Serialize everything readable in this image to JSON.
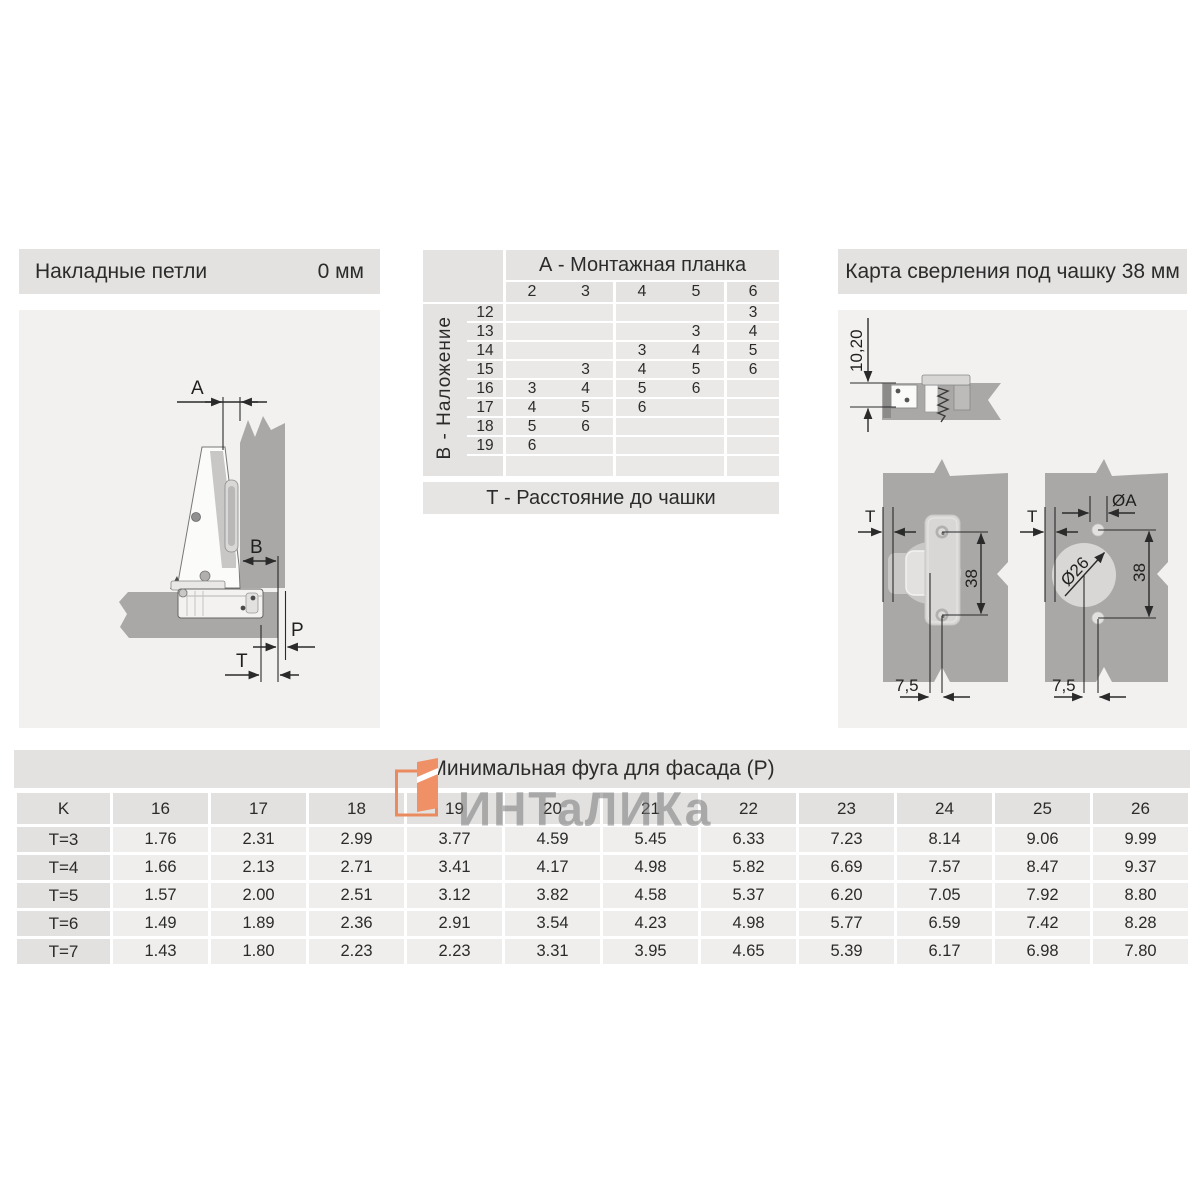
{
  "header_left": {
    "title": "Накладные петли",
    "value": "0 мм"
  },
  "header_right": {
    "title": "Карта сверления под чашку 38 мм"
  },
  "mid_table": {
    "col_header": "А - Монтажная планка",
    "row_header": "В - Наложение",
    "footer": "Т - Расстояние до чашки",
    "columns": [
      "2",
      "3",
      "4",
      "5",
      "6"
    ],
    "rows": [
      {
        "label": "12",
        "cells": [
          "",
          "",
          "",
          "",
          "3"
        ]
      },
      {
        "label": "13",
        "cells": [
          "",
          "",
          "",
          "3",
          "4"
        ]
      },
      {
        "label": "14",
        "cells": [
          "",
          "",
          "3",
          "4",
          "5"
        ]
      },
      {
        "label": "15",
        "cells": [
          "",
          "3",
          "4",
          "5",
          "6"
        ]
      },
      {
        "label": "16",
        "cells": [
          "3",
          "4",
          "5",
          "6",
          ""
        ]
      },
      {
        "label": "17",
        "cells": [
          "4",
          "5",
          "6",
          "",
          ""
        ]
      },
      {
        "label": "18",
        "cells": [
          "5",
          "6",
          "",
          "",
          ""
        ]
      },
      {
        "label": "19",
        "cells": [
          "6",
          "",
          "",
          "",
          ""
        ]
      }
    ]
  },
  "bottom_table": {
    "title": "Минимальная фуга для фасада (P)",
    "corner": "K",
    "columns": [
      "16",
      "17",
      "18",
      "19",
      "20",
      "21",
      "22",
      "23",
      "24",
      "25",
      "26"
    ],
    "rows": [
      {
        "label": "T=3",
        "values": [
          "1.76",
          "2.31",
          "2.99",
          "3.77",
          "4.59",
          "5.45",
          "6.33",
          "7.23",
          "8.14",
          "9.06",
          "9.99"
        ]
      },
      {
        "label": "T=4",
        "values": [
          "1.66",
          "2.13",
          "2.71",
          "3.41",
          "4.17",
          "4.98",
          "5.82",
          "6.69",
          "7.57",
          "8.47",
          "9.37"
        ]
      },
      {
        "label": "T=5",
        "values": [
          "1.57",
          "2.00",
          "2.51",
          "3.12",
          "3.82",
          "4.58",
          "5.37",
          "6.20",
          "7.05",
          "7.92",
          "8.80"
        ]
      },
      {
        "label": "T=6",
        "values": [
          "1.49",
          "1.89",
          "2.36",
          "2.91",
          "3.54",
          "4.23",
          "4.98",
          "5.77",
          "6.59",
          "7.42",
          "8.28"
        ]
      },
      {
        "label": "T=7",
        "values": [
          "1.43",
          "1.80",
          "2.23",
          "2.23",
          "3.31",
          "3.95",
          "4.65",
          "5.39",
          "6.17",
          "6.98",
          "7.80"
        ]
      }
    ]
  },
  "watermark": {
    "text": "ИНТаЛИКа",
    "orange": "#ee8b60",
    "gray": "#9a9a9a"
  },
  "drawings": {
    "left": {
      "a": "A",
      "b": "B",
      "p": "P",
      "t": "T"
    },
    "right": {
      "depth": "10,20",
      "t_plate": "T",
      "dim38_plate": "38",
      "dim75_plate": "7,5",
      "dia_a": "ØA",
      "dia_26": "Ø26",
      "t_holes": "T",
      "dim38_holes": "38",
      "dim75_holes": "7,5"
    }
  },
  "colors": {
    "panel_bg": "#f2f1ef",
    "bar_bg": "#e3e2e0",
    "wood_gray": "#a9a8a6"
  }
}
